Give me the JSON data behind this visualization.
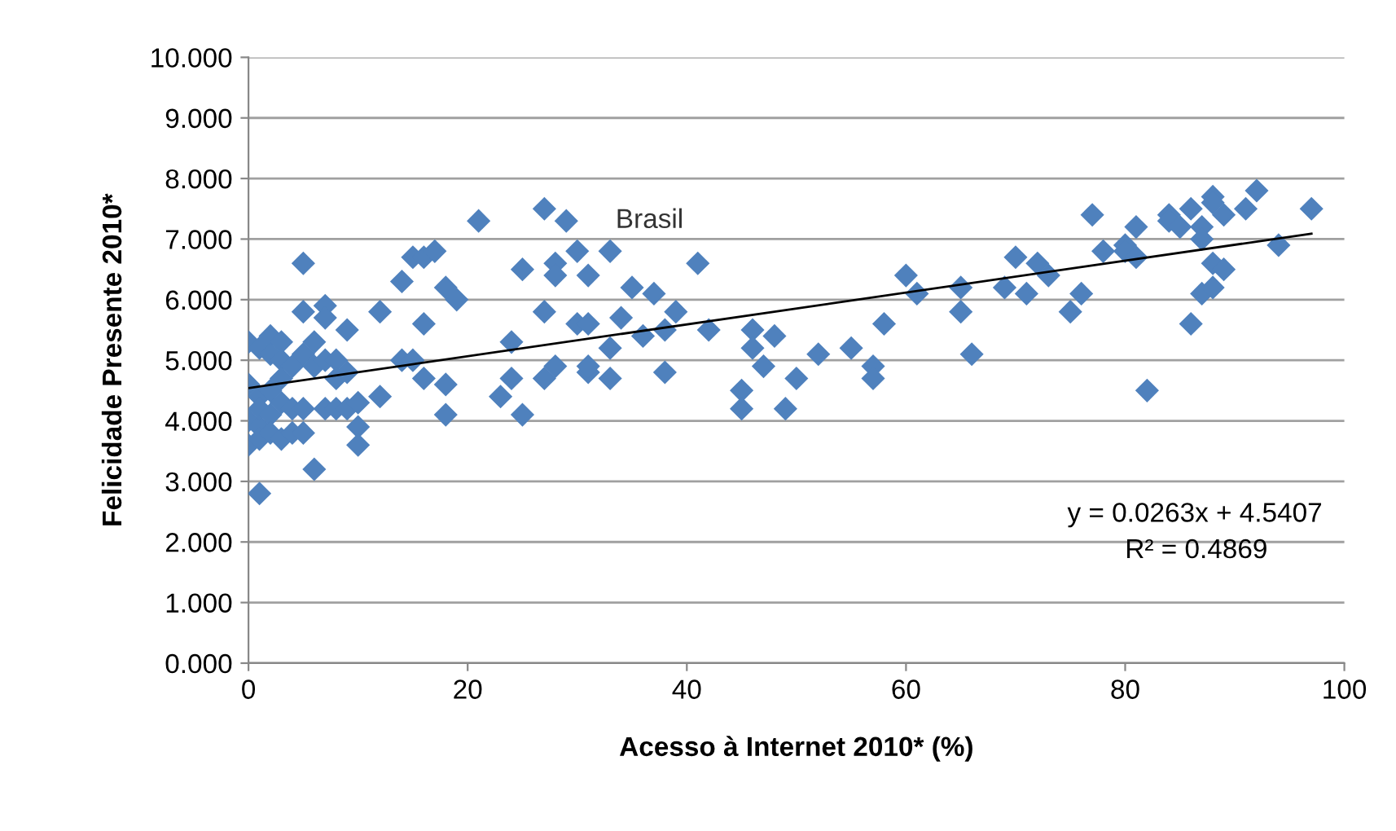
{
  "chart_data": {
    "type": "scatter",
    "xlabel": "Acesso à Internet 2010* (%)",
    "ylabel": "Felicidade Presente 2010*",
    "xlim": [
      0,
      100
    ],
    "xticks": [
      0,
      20,
      40,
      60,
      80,
      100
    ],
    "ylim": [
      0,
      10
    ],
    "yticks": [
      {
        "value": 0,
        "label": "0.000"
      },
      {
        "value": 1,
        "label": "1.000"
      },
      {
        "value": 2,
        "label": "2.000"
      },
      {
        "value": 3,
        "label": "3.000"
      },
      {
        "value": 4,
        "label": "4.000"
      },
      {
        "value": 5,
        "label": "5.000"
      },
      {
        "value": 6,
        "label": "6.000"
      },
      {
        "value": 7,
        "label": "7.000"
      },
      {
        "value": 8,
        "label": "8.000"
      },
      {
        "value": 9,
        "label": "9.000"
      },
      {
        "value": 10,
        "label": "10.000"
      }
    ],
    "grid": "y",
    "legend": false,
    "series": [
      {
        "marker": "diamond",
        "color": "#4f81bd",
        "x": [
          0,
          0,
          0,
          0,
          1,
          1,
          1,
          1,
          1,
          1,
          2,
          2,
          2,
          2,
          2,
          3,
          3,
          3,
          3,
          3,
          4,
          4,
          4,
          5,
          5,
          5,
          5,
          5,
          6,
          6,
          6,
          7,
          7,
          7,
          7,
          8,
          8,
          8,
          9,
          9,
          9,
          10,
          10,
          10,
          12,
          12,
          14,
          14,
          15,
          15,
          16,
          16,
          16,
          17,
          18,
          18,
          18,
          19,
          21,
          23,
          24,
          24,
          25,
          25,
          27,
          27,
          27,
          28,
          28,
          28,
          29,
          30,
          30,
          31,
          31,
          31,
          31,
          33,
          33,
          33,
          34,
          35,
          36,
          37,
          38,
          38,
          39,
          41,
          42,
          45,
          45,
          46,
          46,
          47,
          48,
          49,
          50,
          52,
          55,
          57,
          57,
          58,
          60,
          61,
          65,
          65,
          66,
          69,
          70,
          71,
          72,
          73,
          75,
          76,
          77,
          78,
          80,
          80,
          81,
          81,
          82,
          84,
          84,
          85,
          86,
          86,
          87,
          87,
          87,
          88,
          88,
          88,
          88,
          89,
          89,
          91,
          92,
          94,
          97
        ],
        "values": [
          5.3,
          4.6,
          4.0,
          3.6,
          4.4,
          3.9,
          3.7,
          4.2,
          5.2,
          2.8,
          5.4,
          5.1,
          4.1,
          3.8,
          4.5,
          5.3,
          5.0,
          4.7,
          4.3,
          3.7,
          4.9,
          3.8,
          4.2,
          6.6,
          5.8,
          5.1,
          4.2,
          3.8,
          5.3,
          4.9,
          3.2,
          5.9,
          5.7,
          5.0,
          4.2,
          5.0,
          4.7,
          4.2,
          5.5,
          4.8,
          4.2,
          4.3,
          3.9,
          3.6,
          5.8,
          4.4,
          6.3,
          5.0,
          6.7,
          5.0,
          6.7,
          5.6,
          4.7,
          6.8,
          6.2,
          4.6,
          4.1,
          6.0,
          7.3,
          4.4,
          5.3,
          4.7,
          6.5,
          4.1,
          7.5,
          5.8,
          4.7,
          6.6,
          6.4,
          4.9,
          7.3,
          6.8,
          5.6,
          6.4,
          5.6,
          4.8,
          4.9,
          6.8,
          5.2,
          4.7,
          5.7,
          6.2,
          5.4,
          6.1,
          5.5,
          4.8,
          5.8,
          6.6,
          5.5,
          4.5,
          4.2,
          5.5,
          5.2,
          4.9,
          5.4,
          4.2,
          4.7,
          5.1,
          5.2,
          4.9,
          4.7,
          5.6,
          6.4,
          6.1,
          6.2,
          5.8,
          5.1,
          6.2,
          6.7,
          6.1,
          6.6,
          6.4,
          5.8,
          6.1,
          7.4,
          6.8,
          6.9,
          6.8,
          7.2,
          6.7,
          4.5,
          7.4,
          7.3,
          7.2,
          7.5,
          5.6,
          7.2,
          7.0,
          6.1,
          7.7,
          7.6,
          6.6,
          6.2,
          7.4,
          6.5,
          7.5,
          7.8,
          6.9,
          7.5
        ]
      },
      {
        "type": "line",
        "color": "#000000",
        "x": [
          0,
          97
        ],
        "values": [
          4.54,
          7.09
        ]
      }
    ],
    "annotations": [
      "Brasil",
      "y = 0.0263x + 4.5407",
      "R² = 0.4869"
    ]
  }
}
